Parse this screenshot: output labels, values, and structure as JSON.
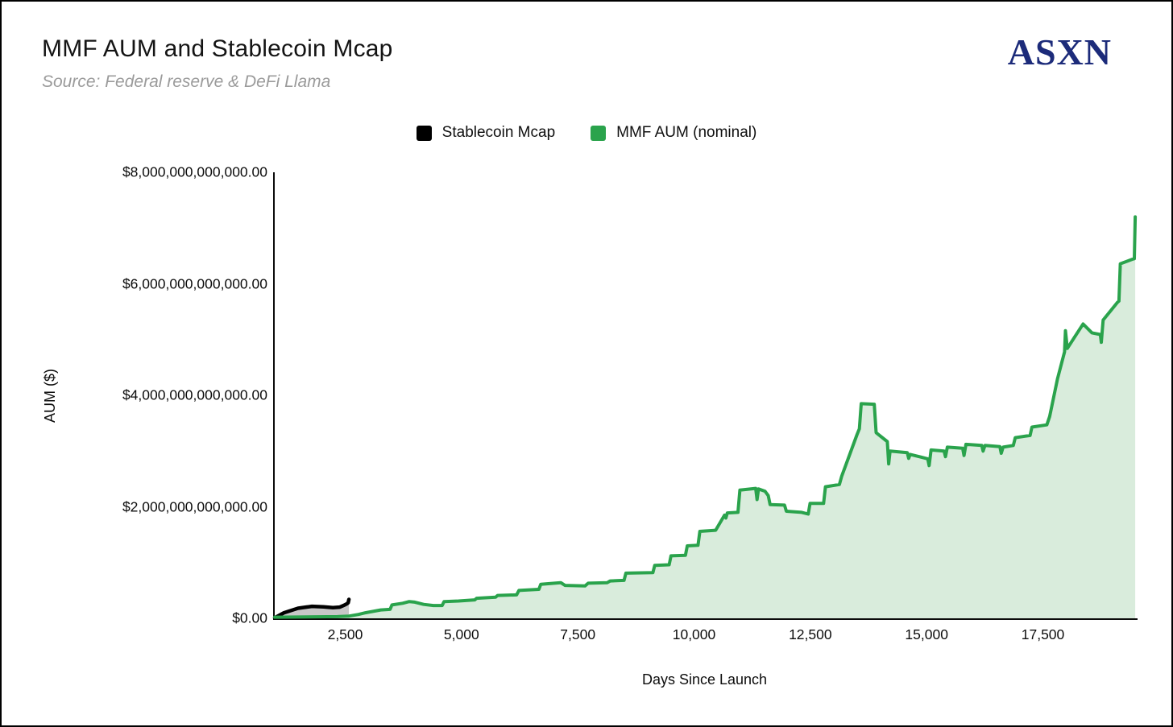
{
  "header": {
    "title": "MMF AUM and Stablecoin Mcap",
    "subtitle": "Source: Federal reserve & DeFi Llama",
    "logo_text": "ASXN"
  },
  "colors": {
    "logo_navy": "#1c2b7a",
    "subtitle_gray": "#9b9b9b",
    "mmf_green": "#2aa34c",
    "mmf_fill": "#d9ecdc",
    "stablecoin_black": "#000000",
    "stablecoin_fill": "#c7c7c7",
    "axis_black": "#0b0b0b"
  },
  "legend": {
    "items": [
      {
        "label": "Stablecoin Mcap",
        "color": "#000000"
      },
      {
        "label": "MMF AUM (nominal)",
        "color": "#2aa34c"
      }
    ]
  },
  "chart_data": {
    "type": "area",
    "title": "MMF AUM and Stablecoin Mcap",
    "xlabel": "Days Since Launch",
    "ylabel": "AUM ($)",
    "grid": false,
    "legend_position": "top-center",
    "x_domain_days": [
      950,
      19500
    ],
    "y_domain_usd_trillions": [
      0,
      8
    ],
    "x_ticks": [
      {
        "value": 2500,
        "label": "2,500"
      },
      {
        "value": 5000,
        "label": "5,000"
      },
      {
        "value": 7500,
        "label": "7,500"
      },
      {
        "value": 10000,
        "label": "10,000"
      },
      {
        "value": 12500,
        "label": "12,500"
      },
      {
        "value": 15000,
        "label": "15,000"
      },
      {
        "value": 17500,
        "label": "17,500"
      }
    ],
    "y_ticks": [
      {
        "value_trillions": 0,
        "label": "$0.00"
      },
      {
        "value_trillions": 2,
        "label": "$2,000,000,000,000.00"
      },
      {
        "value_trillions": 4,
        "label": "$4,000,000,000,000.00"
      },
      {
        "value_trillions": 6,
        "label": "$6,000,000,000,000.00"
      },
      {
        "value_trillions": 8,
        "label": "$8,000,000,000,000.00"
      }
    ],
    "series": [
      {
        "name": "Stablecoin Mcap",
        "stroke": "#000000",
        "fill": "#c7c7c7",
        "stroke_width": 4.5,
        "points_day_trillions": [
          [
            950,
            0.01
          ],
          [
            1150,
            0.1
          ],
          [
            1450,
            0.18
          ],
          [
            1750,
            0.215
          ],
          [
            2000,
            0.205
          ],
          [
            2200,
            0.19
          ],
          [
            2350,
            0.2
          ],
          [
            2430,
            0.23
          ],
          [
            2500,
            0.26
          ],
          [
            2530,
            0.28
          ],
          [
            2545,
            0.34
          ]
        ]
      },
      {
        "name": "MMF AUM (nominal)",
        "stroke": "#2aa34c",
        "fill": "#d9ecdc",
        "stroke_width": 4,
        "points_day_trillions": [
          [
            950,
            0.02
          ],
          [
            2300,
            0.03
          ],
          [
            2550,
            0.04
          ],
          [
            2750,
            0.07
          ],
          [
            2900,
            0.1
          ],
          [
            3100,
            0.13
          ],
          [
            3230,
            0.15
          ],
          [
            3430,
            0.16
          ],
          [
            3470,
            0.24
          ],
          [
            3700,
            0.27
          ],
          [
            3840,
            0.3
          ],
          [
            3960,
            0.29
          ],
          [
            4150,
            0.25
          ],
          [
            4360,
            0.23
          ],
          [
            4550,
            0.23
          ],
          [
            4590,
            0.3
          ],
          [
            4900,
            0.31
          ],
          [
            5250,
            0.33
          ],
          [
            5290,
            0.36
          ],
          [
            5700,
            0.38
          ],
          [
            5740,
            0.41
          ],
          [
            6150,
            0.42
          ],
          [
            6200,
            0.5
          ],
          [
            6630,
            0.52
          ],
          [
            6670,
            0.61
          ],
          [
            7100,
            0.64
          ],
          [
            7190,
            0.59
          ],
          [
            7620,
            0.58
          ],
          [
            7690,
            0.63
          ],
          [
            8100,
            0.64
          ],
          [
            8160,
            0.67
          ],
          [
            8460,
            0.68
          ],
          [
            8500,
            0.81
          ],
          [
            9080,
            0.82
          ],
          [
            9120,
            0.95
          ],
          [
            9430,
            0.96
          ],
          [
            9470,
            1.12
          ],
          [
            9780,
            1.13
          ],
          [
            9820,
            1.3
          ],
          [
            10050,
            1.31
          ],
          [
            10090,
            1.56
          ],
          [
            10430,
            1.58
          ],
          [
            10620,
            1.85
          ],
          [
            10650,
            1.8
          ],
          [
            10680,
            1.89
          ],
          [
            10910,
            1.9
          ],
          [
            10950,
            2.3
          ],
          [
            11290,
            2.33
          ],
          [
            11320,
            2.13
          ],
          [
            11350,
            2.32
          ],
          [
            11490,
            2.28
          ],
          [
            11560,
            2.2
          ],
          [
            11600,
            2.04
          ],
          [
            11910,
            2.03
          ],
          [
            11950,
            1.92
          ],
          [
            12280,
            1.9
          ],
          [
            12420,
            1.87
          ],
          [
            12460,
            2.06
          ],
          [
            12750,
            2.06
          ],
          [
            12790,
            2.36
          ],
          [
            13090,
            2.4
          ],
          [
            13140,
            2.55
          ],
          [
            13470,
            3.3
          ],
          [
            13520,
            3.4
          ],
          [
            13560,
            3.85
          ],
          [
            13840,
            3.84
          ],
          [
            13880,
            3.33
          ],
          [
            14120,
            3.17
          ],
          [
            14150,
            2.77
          ],
          [
            14180,
            3.0
          ],
          [
            14550,
            2.97
          ],
          [
            14580,
            2.87
          ],
          [
            14610,
            2.94
          ],
          [
            14990,
            2.86
          ],
          [
            15020,
            2.74
          ],
          [
            15060,
            3.02
          ],
          [
            15340,
            3.0
          ],
          [
            15370,
            2.9
          ],
          [
            15410,
            3.07
          ],
          [
            15740,
            3.05
          ],
          [
            15770,
            2.92
          ],
          [
            15810,
            3.12
          ],
          [
            16150,
            3.1
          ],
          [
            16180,
            3.0
          ],
          [
            16220,
            3.1
          ],
          [
            16540,
            3.08
          ],
          [
            16570,
            2.96
          ],
          [
            16610,
            3.07
          ],
          [
            16830,
            3.1
          ],
          [
            16870,
            3.24
          ],
          [
            17190,
            3.28
          ],
          [
            17230,
            3.43
          ],
          [
            17550,
            3.47
          ],
          [
            17610,
            3.62
          ],
          [
            17780,
            4.3
          ],
          [
            17930,
            4.78
          ],
          [
            17950,
            5.16
          ],
          [
            17990,
            4.84
          ],
          [
            18150,
            5.05
          ],
          [
            18330,
            5.28
          ],
          [
            18520,
            5.12
          ],
          [
            18700,
            5.09
          ],
          [
            18720,
            4.95
          ],
          [
            18760,
            5.35
          ],
          [
            19070,
            5.67
          ],
          [
            19100,
            5.69
          ],
          [
            19130,
            6.36
          ],
          [
            19390,
            6.44
          ],
          [
            19430,
            6.45
          ],
          [
            19450,
            7.2
          ]
        ]
      }
    ]
  }
}
